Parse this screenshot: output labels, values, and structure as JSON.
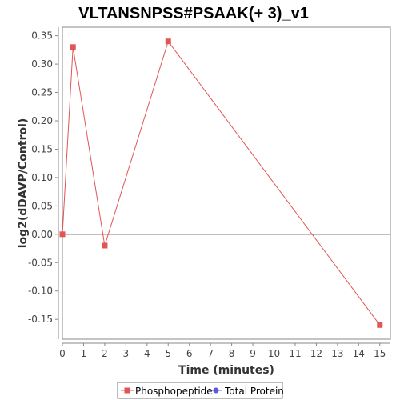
{
  "chart_data": {
    "type": "line",
    "title": "VLTANSNPSS#PSAAK(+ 3)_v1",
    "xlabel": "Time (minutes)",
    "ylabel": "log2(dDAVP/Control)",
    "xlim": [
      0,
      15.5
    ],
    "ylim": [
      -0.185,
      0.365
    ],
    "xticks": [
      0,
      1,
      2,
      3,
      4,
      5,
      6,
      7,
      8,
      9,
      10,
      11,
      12,
      13,
      14,
      15
    ],
    "xtick_labels": [
      "0",
      "1",
      "2",
      "3",
      "4",
      "5",
      "6",
      "7",
      "8",
      "9",
      "10",
      "11",
      "12",
      "13",
      "14",
      "15"
    ],
    "yticks": [
      -0.15,
      -0.1,
      -0.05,
      0.0,
      0.05,
      0.1,
      0.15,
      0.2,
      0.25,
      0.3,
      0.35
    ],
    "ytick_labels": [
      "-0.15",
      "-0.10",
      "-0.05",
      "0.00",
      "0.05",
      "0.10",
      "0.15",
      "0.20",
      "0.25",
      "0.30",
      "0.35"
    ],
    "zero_line": true,
    "grid": false,
    "legend_position": "bottom",
    "series": [
      {
        "name": "Phosphopeptide",
        "color": "#e05555",
        "marker": "square",
        "x": [
          0,
          0.5,
          2,
          5,
          15
        ],
        "y": [
          0.0,
          0.33,
          -0.02,
          0.34,
          -0.16
        ]
      },
      {
        "name": "Total Protein",
        "color": "#5a5ae0",
        "marker": "circle",
        "x": [],
        "y": []
      }
    ]
  }
}
